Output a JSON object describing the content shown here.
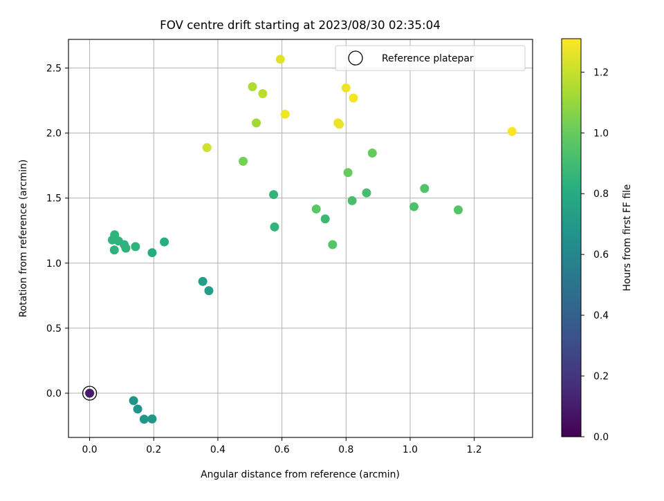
{
  "chart_data": {
    "type": "scatter",
    "title": "FOV centre drift starting at 2023/08/30 02:35:04",
    "xlabel": "Angular distance from reference (arcmin)",
    "ylabel": "Rotation from reference (arcmin)",
    "xlim": [
      -0.066,
      1.382
    ],
    "ylim": [
      -0.34,
      2.72
    ],
    "xticks": [
      0.0,
      0.2,
      0.4,
      0.6,
      0.8,
      1.0,
      1.2
    ],
    "xtick_labels": [
      "0.0",
      "0.2",
      "0.4",
      "0.6",
      "0.8",
      "1.0",
      "1.2"
    ],
    "yticks": [
      0.0,
      0.5,
      1.0,
      1.5,
      2.0,
      2.5
    ],
    "ytick_labels": [
      "0.0",
      "0.5",
      "1.0",
      "1.5",
      "2.0",
      "2.5"
    ],
    "grid": true,
    "colormap": "viridis",
    "colorbar": {
      "label": "Hours from first FF file",
      "min": 0.0,
      "max": 1.31,
      "ticks": [
        0.0,
        0.2,
        0.4,
        0.6,
        0.8,
        1.0,
        1.2
      ],
      "tick_labels": [
        "0.0",
        "0.2",
        "0.4",
        "0.6",
        "0.8",
        "1.0",
        "1.2"
      ]
    },
    "legend": {
      "placement": "top-right",
      "entries": [
        {
          "label": "Reference platepar",
          "marker": "open-circle"
        }
      ]
    },
    "reference_point": {
      "x": 0.0,
      "y": 0.0
    },
    "points": [
      {
        "x": 0.0,
        "y": 0.0,
        "c": 0.1
      },
      {
        "x": 0.137,
        "y": -0.057,
        "c": 0.68
      },
      {
        "x": 0.15,
        "y": -0.122,
        "c": 0.68
      },
      {
        "x": 0.17,
        "y": -0.2,
        "c": 0.69
      },
      {
        "x": 0.195,
        "y": -0.198,
        "c": 0.69
      },
      {
        "x": 0.353,
        "y": 0.859,
        "c": 0.73
      },
      {
        "x": 0.372,
        "y": 0.788,
        "c": 0.73
      },
      {
        "x": 0.195,
        "y": 1.08,
        "c": 0.8
      },
      {
        "x": 0.233,
        "y": 1.163,
        "c": 0.81
      },
      {
        "x": 0.071,
        "y": 1.178,
        "c": 0.84
      },
      {
        "x": 0.078,
        "y": 1.218,
        "c": 0.84
      },
      {
        "x": 0.077,
        "y": 1.101,
        "c": 0.84
      },
      {
        "x": 0.09,
        "y": 1.17,
        "c": 0.84
      },
      {
        "x": 0.108,
        "y": 1.142,
        "c": 0.84
      },
      {
        "x": 0.113,
        "y": 1.115,
        "c": 0.84
      },
      {
        "x": 0.143,
        "y": 1.127,
        "c": 0.84
      },
      {
        "x": 0.574,
        "y": 1.527,
        "c": 0.85
      },
      {
        "x": 0.577,
        "y": 1.278,
        "c": 0.85
      },
      {
        "x": 0.735,
        "y": 1.34,
        "c": 0.88
      },
      {
        "x": 0.758,
        "y": 1.142,
        "c": 0.95
      },
      {
        "x": 0.707,
        "y": 1.416,
        "c": 0.97
      },
      {
        "x": 0.819,
        "y": 1.48,
        "c": 0.92
      },
      {
        "x": 0.864,
        "y": 1.54,
        "c": 0.91
      },
      {
        "x": 1.012,
        "y": 1.434,
        "c": 0.93
      },
      {
        "x": 1.045,
        "y": 1.574,
        "c": 0.94
      },
      {
        "x": 1.15,
        "y": 1.409,
        "c": 0.95
      },
      {
        "x": 0.806,
        "y": 1.696,
        "c": 1.0
      },
      {
        "x": 0.882,
        "y": 1.846,
        "c": 1.0
      },
      {
        "x": 0.479,
        "y": 1.783,
        "c": 1.03
      },
      {
        "x": 0.52,
        "y": 2.078,
        "c": 1.12
      },
      {
        "x": 0.508,
        "y": 2.356,
        "c": 1.15
      },
      {
        "x": 0.54,
        "y": 2.303,
        "c": 1.17
      },
      {
        "x": 0.366,
        "y": 1.888,
        "c": 1.22
      },
      {
        "x": 0.595,
        "y": 2.567,
        "c": 1.25
      },
      {
        "x": 0.61,
        "y": 2.145,
        "c": 1.28
      },
      {
        "x": 0.775,
        "y": 2.078,
        "c": 1.27
      },
      {
        "x": 0.779,
        "y": 2.067,
        "c": 1.27
      },
      {
        "x": 0.8,
        "y": 2.347,
        "c": 1.28
      },
      {
        "x": 0.823,
        "y": 2.269,
        "c": 1.29
      },
      {
        "x": 1.318,
        "y": 2.012,
        "c": 1.3
      }
    ]
  }
}
